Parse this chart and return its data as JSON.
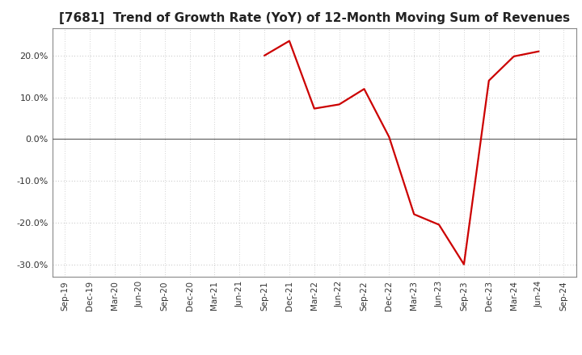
{
  "title": "[7681]  Trend of Growth Rate (YoY) of 12-Month Moving Sum of Revenues",
  "line_color": "#cc0000",
  "line_width": 1.6,
  "background_color": "#ffffff",
  "plot_bg_color": "#ffffff",
  "grid_color": "#aaaaaa",
  "zero_line_color": "#666666",
  "spine_color": "#888888",
  "ylim": [
    -0.33,
    0.265
  ],
  "yticks": [
    -0.3,
    -0.2,
    -0.1,
    0.0,
    0.1,
    0.2
  ],
  "values": [
    null,
    null,
    null,
    null,
    null,
    null,
    null,
    null,
    0.2,
    0.235,
    0.073,
    0.083,
    0.12,
    0.005,
    -0.18,
    -0.205,
    -0.3,
    0.14,
    0.198,
    0.21,
    null
  ],
  "xtick_labels": [
    "Sep-19",
    "Dec-19",
    "Mar-20",
    "Jun-20",
    "Sep-20",
    "Dec-20",
    "Mar-21",
    "Jun-21",
    "Sep-21",
    "Dec-21",
    "Mar-22",
    "Jun-22",
    "Sep-22",
    "Dec-22",
    "Mar-23",
    "Jun-23",
    "Sep-23",
    "Dec-23",
    "Mar-24",
    "Jun-24",
    "Sep-24"
  ],
  "title_fontsize": 11,
  "tick_fontsize": 7.5,
  "ylabel_fontsize": 8
}
